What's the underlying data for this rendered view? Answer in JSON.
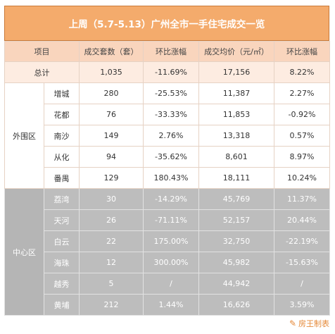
{
  "title": "上周（5.7-5.13）广州全市一手住宅成交一览",
  "headers": [
    "项目",
    "成交套数（套）",
    "环比涨幅",
    "成交均价（元/㎡）",
    "环比涨幅"
  ],
  "total": {
    "label": "总计",
    "units": "1,035",
    "units_change": "-11.69%",
    "price": "17,156",
    "price_change": "8.22%"
  },
  "outer": {
    "region": "外围区",
    "rows": [
      {
        "district": "增城",
        "units": "280",
        "units_change": "-25.53%",
        "price": "11,387",
        "price_change": "2.27%"
      },
      {
        "district": "花都",
        "units": "76",
        "units_change": "-33.33%",
        "price": "11,853",
        "price_change": "-0.92%"
      },
      {
        "district": "南沙",
        "units": "149",
        "units_change": "2.76%",
        "price": "13,318",
        "price_change": "0.57%"
      },
      {
        "district": "从化",
        "units": "94",
        "units_change": "-35.62%",
        "price": "8,601",
        "price_change": "8.97%"
      },
      {
        "district": "番禺",
        "units": "129",
        "units_change": "180.43%",
        "price": "18,111",
        "price_change": "10.24%"
      }
    ]
  },
  "center": {
    "region": "中心区",
    "rows": [
      {
        "district": "荔湾",
        "units": "30",
        "units_change": "-14.29%",
        "price": "45,769",
        "price_change": "11.37%"
      },
      {
        "district": "天河",
        "units": "26",
        "units_change": "-71.11%",
        "price": "52,157",
        "price_change": "20.44%"
      },
      {
        "district": "白云",
        "units": "22",
        "units_change": "175.00%",
        "price": "32,750",
        "price_change": "-22.19%"
      },
      {
        "district": "海珠",
        "units": "12",
        "units_change": "300.00%",
        "price": "45,982",
        "price_change": "-15.63%"
      },
      {
        "district": "越秀",
        "units": "5",
        "units_change": "/",
        "price": "44,942",
        "price_change": "/"
      },
      {
        "district": "黄埔",
        "units": "212",
        "units_change": "1.44%",
        "price": "16,626",
        "price_change": "3.59%"
      }
    ]
  },
  "watermark": {
    "icon": "brush-icon",
    "text": "房王制表"
  },
  "colors": {
    "title_bg": "#f4ab6c",
    "header_bg": "#f9d5bd",
    "total_bg": "#fdece1",
    "center_bg": "#bdbdbd",
    "watermark": "#e58a3a"
  }
}
